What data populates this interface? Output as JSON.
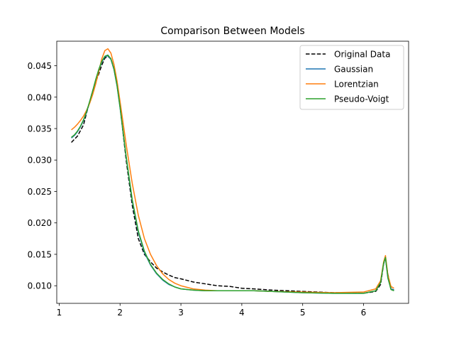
{
  "chart_data": {
    "type": "line",
    "title": "Comparison Between Models",
    "xlabel": "",
    "ylabel": "",
    "xlim": [
      0.96,
      6.74
    ],
    "ylim": [
      0.0072,
      0.0489
    ],
    "xticks": [
      1,
      2,
      3,
      4,
      5,
      6
    ],
    "yticks": [
      0.01,
      0.015,
      0.02,
      0.025,
      0.03,
      0.035,
      0.04,
      0.045
    ],
    "xtick_labels": [
      "1",
      "2",
      "3",
      "4",
      "5",
      "6"
    ],
    "ytick_labels": [
      "0.010",
      "0.015",
      "0.020",
      "0.025",
      "0.030",
      "0.035",
      "0.040",
      "0.045"
    ],
    "grid": false,
    "legend_position": "upper right",
    "series": [
      {
        "name": "Original Data",
        "color": "#000000",
        "style": "dashed",
        "x": [
          1.2,
          1.25,
          1.3,
          1.35,
          1.4,
          1.45,
          1.5,
          1.55,
          1.6,
          1.65,
          1.7,
          1.75,
          1.8,
          1.85,
          1.9,
          1.95,
          2.0,
          2.1,
          2.2,
          2.3,
          2.4,
          2.5,
          2.6,
          2.7,
          2.8,
          2.9,
          3.0,
          3.2,
          3.4,
          3.6,
          3.8,
          4.0,
          4.2,
          4.5,
          5.0,
          5.5,
          6.0,
          6.2,
          6.28,
          6.33,
          6.36,
          6.4,
          6.45,
          6.5
        ],
        "y": [
          0.0328,
          0.0333,
          0.0338,
          0.0347,
          0.0356,
          0.0375,
          0.0392,
          0.041,
          0.0424,
          0.0437,
          0.0451,
          0.0462,
          0.0465,
          0.0461,
          0.0445,
          0.042,
          0.0385,
          0.03,
          0.0228,
          0.0175,
          0.015,
          0.0138,
          0.0128,
          0.0122,
          0.0117,
          0.0113,
          0.0111,
          0.0106,
          0.0103,
          0.01,
          0.0099,
          0.0096,
          0.0095,
          0.0093,
          0.0091,
          0.0089,
          0.0088,
          0.0091,
          0.0102,
          0.0135,
          0.0143,
          0.0118,
          0.0096,
          0.0093
        ]
      },
      {
        "name": "Gaussian",
        "color": "#1f77b4",
        "style": "solid",
        "x": [
          1.2,
          1.25,
          1.3,
          1.35,
          1.4,
          1.45,
          1.5,
          1.55,
          1.6,
          1.65,
          1.7,
          1.75,
          1.8,
          1.85,
          1.9,
          1.95,
          2.0,
          2.1,
          2.2,
          2.3,
          2.4,
          2.5,
          2.6,
          2.7,
          2.8,
          2.9,
          3.0,
          3.2,
          3.4,
          3.6,
          3.8,
          4.0,
          4.2,
          4.5,
          5.0,
          5.5,
          6.0,
          6.2,
          6.28,
          6.33,
          6.36,
          6.4,
          6.45,
          6.5
        ],
        "y": [
          0.0335,
          0.0339,
          0.0345,
          0.0353,
          0.0363,
          0.0376,
          0.0392,
          0.0409,
          0.0427,
          0.0443,
          0.0456,
          0.0464,
          0.0466,
          0.046,
          0.0444,
          0.0418,
          0.0383,
          0.0305,
          0.0235,
          0.0185,
          0.0153,
          0.0133,
          0.0119,
          0.0109,
          0.0102,
          0.0098,
          0.0095,
          0.0093,
          0.0092,
          0.0092,
          0.0092,
          0.0092,
          0.0092,
          0.0091,
          0.0089,
          0.0088,
          0.0088,
          0.0092,
          0.0105,
          0.0136,
          0.0144,
          0.0112,
          0.0095,
          0.0093
        ]
      },
      {
        "name": "Lorentzian",
        "color": "#ff7f0e",
        "style": "solid",
        "x": [
          1.2,
          1.25,
          1.3,
          1.35,
          1.4,
          1.45,
          1.5,
          1.55,
          1.6,
          1.65,
          1.7,
          1.75,
          1.8,
          1.85,
          1.9,
          1.95,
          2.0,
          2.1,
          2.2,
          2.3,
          2.4,
          2.5,
          2.6,
          2.7,
          2.8,
          2.9,
          3.0,
          3.2,
          3.4,
          3.6,
          3.8,
          4.0,
          4.2,
          4.5,
          5.0,
          5.5,
          6.0,
          6.2,
          6.28,
          6.33,
          6.36,
          6.4,
          6.45,
          6.5
        ],
        "y": [
          0.0348,
          0.0352,
          0.0357,
          0.0363,
          0.037,
          0.0379,
          0.039,
          0.0404,
          0.0421,
          0.0441,
          0.0461,
          0.0474,
          0.0477,
          0.047,
          0.0452,
          0.0426,
          0.0393,
          0.0325,
          0.0263,
          0.0212,
          0.0175,
          0.015,
          0.0132,
          0.0119,
          0.011,
          0.0104,
          0.01,
          0.0095,
          0.0093,
          0.0092,
          0.0092,
          0.0092,
          0.0092,
          0.0091,
          0.009,
          0.0089,
          0.009,
          0.0095,
          0.0108,
          0.0138,
          0.0148,
          0.0117,
          0.0099,
          0.0096
        ]
      },
      {
        "name": "Pseudo-Voigt",
        "color": "#2ca02c",
        "style": "solid",
        "x": [
          1.2,
          1.25,
          1.3,
          1.35,
          1.4,
          1.45,
          1.5,
          1.55,
          1.6,
          1.65,
          1.7,
          1.75,
          1.8,
          1.85,
          1.9,
          1.95,
          2.0,
          2.1,
          2.2,
          2.3,
          2.4,
          2.5,
          2.6,
          2.7,
          2.8,
          2.9,
          3.0,
          3.2,
          3.4,
          3.6,
          3.8,
          4.0,
          4.2,
          4.5,
          5.0,
          5.5,
          6.0,
          6.2,
          6.28,
          6.33,
          6.36,
          6.4,
          6.45,
          6.5
        ],
        "y": [
          0.0336,
          0.034,
          0.0346,
          0.0354,
          0.0364,
          0.0377,
          0.0393,
          0.041,
          0.0428,
          0.0444,
          0.0457,
          0.0465,
          0.0467,
          0.0461,
          0.0445,
          0.0419,
          0.0384,
          0.0306,
          0.0237,
          0.0187,
          0.0155,
          0.0134,
          0.012,
          0.011,
          0.0103,
          0.0098,
          0.0095,
          0.0093,
          0.0092,
          0.0092,
          0.0092,
          0.0092,
          0.0092,
          0.0091,
          0.0089,
          0.0088,
          0.0088,
          0.0092,
          0.0105,
          0.0136,
          0.0145,
          0.0113,
          0.0094,
          0.0092
        ]
      }
    ]
  }
}
